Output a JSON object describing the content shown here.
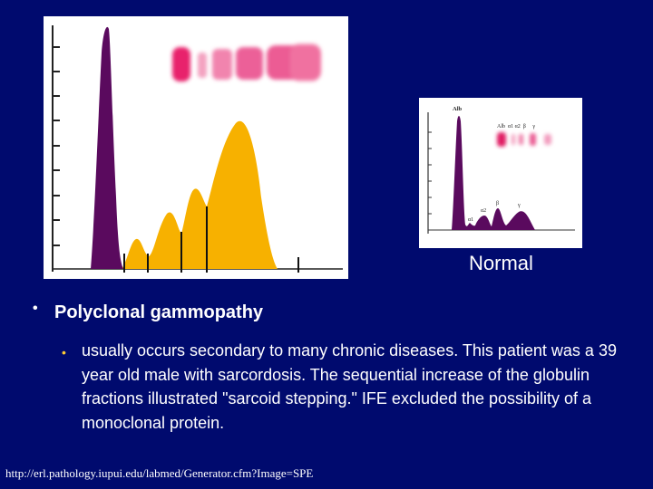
{
  "main_figure": {
    "image": "serum protein electrophoresis densitometry tracing with gel strip, polyclonal pattern",
    "colors": {
      "albumin": "#5a0a5e",
      "globulins": "#f7b100",
      "gel_band": "#e8246c"
    }
  },
  "normal_figure": {
    "colors": {
      "peaks": "#5a0a5e",
      "gel_band": "#e01c63"
    },
    "labels": {
      "alb": "Alb",
      "alpha1": "α1",
      "alpha2": "α2",
      "beta": "β",
      "gamma": "γ",
      "strip_header": "Alb  α1 α2  β     γ"
    }
  },
  "normal_caption": "Normal",
  "bullets": {
    "marker": "•",
    "level1": "Polyclonal gammopathy",
    "level2": "usually occurs secondary to many chronic diseases. This patient was a 39 year old male with sarcordosis. The sequential increase of the globulin fractions illustrated \"sarcoid stepping.\" IFE excluded the possibility of a monoclonal protein."
  },
  "footer_url": "http://erl.pathology.iupui.edu/labmed/Generator.cfm?Image=SPE"
}
